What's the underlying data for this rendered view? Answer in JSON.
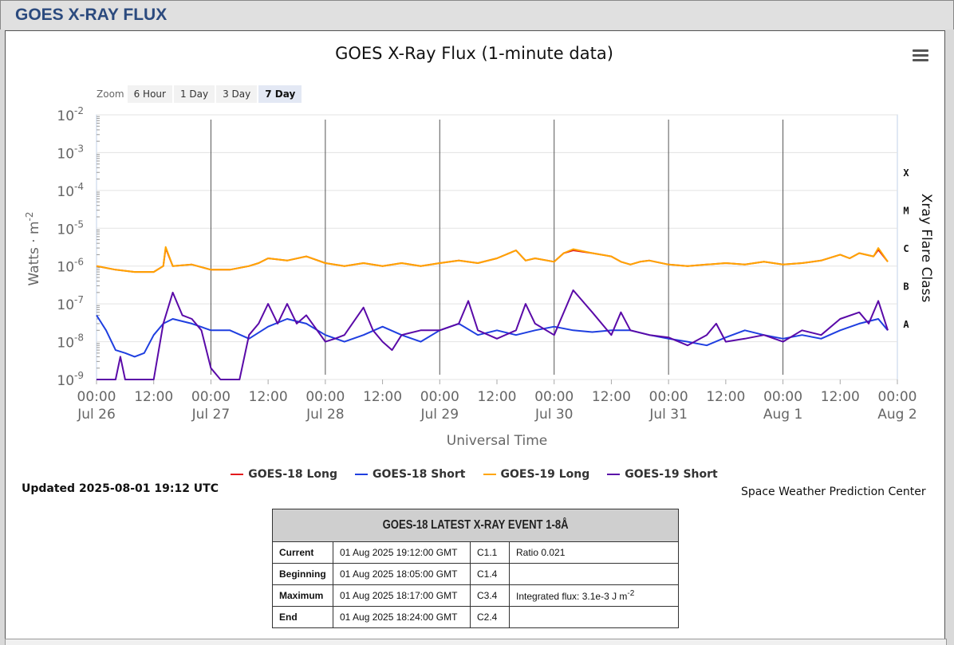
{
  "page": {
    "header": "GOES X-RAY FLUX"
  },
  "chart_meta": {
    "zoom_label": "Zoom",
    "zoom_options": [
      "6 Hour",
      "1 Day",
      "3 Day",
      "7 Day"
    ],
    "zoom_selected": "7 Day"
  },
  "colors": {
    "goes18_long": "#e31a1c",
    "goes18_short": "#1f3fe0",
    "goes19_long": "#ffa500",
    "goes19_short": "#5a0aa8",
    "header": "#2b4a7e"
  },
  "footer": {
    "updated": "Updated 2025-08-01 19:12 UTC",
    "credit": "Space Weather Prediction Center"
  },
  "event": {
    "title": "GOES-18 LATEST X-RAY EVENT 1-8Å",
    "rows": [
      {
        "label": "Current",
        "time": "01 Aug 2025 19:12:00 GMT",
        "cls": "C1.1",
        "note": "Ratio 0.021"
      },
      {
        "label": "Beginning",
        "time": "01 Aug 2025 18:05:00 GMT",
        "cls": "C1.4",
        "note": ""
      },
      {
        "label": "Maximum",
        "time": "01 Aug 2025 18:17:00 GMT",
        "cls": "C3.4",
        "note": "Integrated flux: 3.1e-3 J m",
        "note_sup": "-2"
      },
      {
        "label": "End",
        "time": "01 Aug 2025 18:24:00 GMT",
        "cls": "C2.4",
        "note": ""
      }
    ]
  },
  "chart_data": {
    "type": "line",
    "title": "GOES X-Ray Flux (1-minute data)",
    "xlabel": "Universal Time",
    "ylabel": "Watts · m",
    "ylabel_sup": "-2",
    "y2label": "Xray Flare Class",
    "y_scale": "log",
    "ylim": [
      1e-09,
      0.01
    ],
    "y_ticks": [
      {
        "base": "10",
        "exp": "-2",
        "value": 0.01
      },
      {
        "base": "10",
        "exp": "-3",
        "value": 0.001
      },
      {
        "base": "10",
        "exp": "-4",
        "value": 0.0001
      },
      {
        "base": "10",
        "exp": "-5",
        "value": 1e-05
      },
      {
        "base": "10",
        "exp": "-6",
        "value": 1e-06
      },
      {
        "base": "10",
        "exp": "-7",
        "value": 1e-07
      },
      {
        "base": "10",
        "exp": "-8",
        "value": 1e-08
      },
      {
        "base": "10",
        "exp": "-9",
        "value": 1e-09
      }
    ],
    "flare_classes": [
      {
        "label": "X",
        "value": 0.0003
      },
      {
        "label": "M",
        "value": 3e-05
      },
      {
        "label": "C",
        "value": 3e-06
      },
      {
        "label": "B",
        "value": 3e-07
      },
      {
        "label": "A",
        "value": 3e-08
      }
    ],
    "x_unit": "hours since 2025-07-26 00:00 UTC",
    "xlim": [
      0,
      168
    ],
    "x_ticks": [
      {
        "hour": 0,
        "time": "00:00",
        "date": "Jul 26"
      },
      {
        "hour": 12,
        "time": "12:00",
        "date": ""
      },
      {
        "hour": 24,
        "time": "00:00",
        "date": "Jul 27"
      },
      {
        "hour": 36,
        "time": "12:00",
        "date": ""
      },
      {
        "hour": 48,
        "time": "00:00",
        "date": "Jul 28"
      },
      {
        "hour": 60,
        "time": "12:00",
        "date": ""
      },
      {
        "hour": 72,
        "time": "00:00",
        "date": "Jul 29"
      },
      {
        "hour": 84,
        "time": "12:00",
        "date": ""
      },
      {
        "hour": 96,
        "time": "00:00",
        "date": "Jul 30"
      },
      {
        "hour": 108,
        "time": "12:00",
        "date": ""
      },
      {
        "hour": 120,
        "time": "00:00",
        "date": "Jul 31"
      },
      {
        "hour": 132,
        "time": "12:00",
        "date": ""
      },
      {
        "hour": 144,
        "time": "00:00",
        "date": "Aug 1"
      },
      {
        "hour": 156,
        "time": "12:00",
        "date": ""
      },
      {
        "hour": 168,
        "time": "00:00",
        "date": "Aug 2"
      }
    ],
    "grid": true,
    "legend_position": "bottom",
    "series": [
      {
        "name": "GOES-18 Long",
        "color": "#e31a1c",
        "x": [
          0,
          4,
          8,
          12,
          14,
          14.5,
          16,
          20,
          24,
          28,
          32,
          34,
          36,
          40,
          44,
          48,
          52,
          56,
          60,
          64,
          68,
          72,
          76,
          80,
          84,
          88,
          90,
          92,
          96,
          98,
          100,
          104,
          108,
          110,
          112,
          114,
          116,
          120,
          124,
          128,
          132,
          136,
          140,
          144,
          148,
          152,
          156,
          158,
          160,
          163,
          164,
          166
        ],
        "y": [
          1e-06,
          8e-07,
          7e-07,
          7e-07,
          1e-06,
          3e-06,
          1e-06,
          1.1e-06,
          8e-07,
          8e-07,
          1e-06,
          1.2e-06,
          1.6e-06,
          1.4e-06,
          1.8e-06,
          1.2e-06,
          1e-06,
          1.2e-06,
          1e-06,
          1.2e-06,
          1e-06,
          1.2e-06,
          1.4e-06,
          1.2e-06,
          1.6e-06,
          2.6e-06,
          1.4e-06,
          1.6e-06,
          1.3e-06,
          2.2e-06,
          2.6e-06,
          2.2e-06,
          1.8e-06,
          1.3e-06,
          1.1e-06,
          1.3e-06,
          1.4e-06,
          1.1e-06,
          1e-06,
          1.1e-06,
          1.2e-06,
          1.1e-06,
          1.3e-06,
          1.1e-06,
          1.2e-06,
          1.4e-06,
          2e-06,
          1.6e-06,
          2.2e-06,
          1.8e-06,
          2.7e-06,
          1.3e-06
        ]
      },
      {
        "name": "GOES-18 Short",
        "color": "#1f3fe0",
        "x": [
          0,
          2,
          4,
          6,
          8,
          10,
          12,
          14,
          16,
          20,
          24,
          28,
          32,
          36,
          40,
          44,
          48,
          52,
          56,
          60,
          64,
          68,
          72,
          76,
          80,
          84,
          88,
          92,
          96,
          100,
          104,
          108,
          112,
          116,
          120,
          124,
          128,
          132,
          136,
          140,
          144,
          148,
          152,
          156,
          160,
          164,
          166
        ],
        "y": [
          5e-08,
          2e-08,
          6e-09,
          5e-09,
          4e-09,
          5e-09,
          1.5e-08,
          3e-08,
          4e-08,
          3e-08,
          2e-08,
          2e-08,
          1.2e-08,
          2.5e-08,
          4e-08,
          3e-08,
          1.5e-08,
          1e-08,
          1.5e-08,
          2.5e-08,
          1.5e-08,
          1e-08,
          2e-08,
          3e-08,
          1.5e-08,
          2e-08,
          1.5e-08,
          2e-08,
          2.5e-08,
          2e-08,
          1.8e-08,
          2e-08,
          2e-08,
          1.5e-08,
          1.2e-08,
          1e-08,
          8e-09,
          1.3e-08,
          2e-08,
          1.5e-08,
          1.2e-08,
          1.5e-08,
          1.2e-08,
          2e-08,
          3e-08,
          4e-08,
          2e-08
        ]
      },
      {
        "name": "GOES-19 Long",
        "color": "#ffa500",
        "x": [
          0,
          4,
          8,
          12,
          14,
          14.5,
          16,
          20,
          24,
          28,
          32,
          34,
          36,
          40,
          44,
          48,
          52,
          56,
          60,
          64,
          68,
          72,
          76,
          80,
          84,
          88,
          90,
          92,
          96,
          98,
          100,
          104,
          108,
          110,
          112,
          114,
          116,
          120,
          124,
          128,
          132,
          136,
          140,
          144,
          148,
          152,
          156,
          158,
          160,
          163,
          164,
          166
        ],
        "y": [
          1e-06,
          8e-07,
          7e-07,
          7e-07,
          1e-06,
          3.2e-06,
          1e-06,
          1.1e-06,
          8e-07,
          8e-07,
          1e-06,
          1.2e-06,
          1.6e-06,
          1.4e-06,
          1.8e-06,
          1.2e-06,
          1e-06,
          1.2e-06,
          1e-06,
          1.2e-06,
          1e-06,
          1.2e-06,
          1.4e-06,
          1.2e-06,
          1.6e-06,
          2.6e-06,
          1.4e-06,
          1.6e-06,
          1.3e-06,
          2.2e-06,
          2.8e-06,
          2.2e-06,
          1.8e-06,
          1.3e-06,
          1.1e-06,
          1.3e-06,
          1.4e-06,
          1.1e-06,
          1e-06,
          1.1e-06,
          1.2e-06,
          1.1e-06,
          1.3e-06,
          1.1e-06,
          1.2e-06,
          1.4e-06,
          2e-06,
          1.6e-06,
          2.2e-06,
          1.8e-06,
          3e-06,
          1.3e-06
        ]
      },
      {
        "name": "GOES-19 Short",
        "color": "#5a0aa8",
        "x": [
          0,
          4,
          5,
          6,
          8,
          10,
          12,
          14,
          16,
          18,
          20,
          22,
          24,
          26,
          28,
          30,
          32,
          34,
          36,
          38,
          40,
          42,
          44,
          48,
          50,
          52,
          56,
          58,
          60,
          62,
          64,
          68,
          72,
          76,
          78,
          80,
          84,
          88,
          90,
          92,
          96,
          100,
          104,
          108,
          110,
          112,
          116,
          120,
          124,
          128,
          130,
          132,
          136,
          140,
          144,
          148,
          152,
          156,
          160,
          162,
          164,
          166
        ],
        "y": [
          1e-09,
          1e-09,
          4e-09,
          1e-09,
          1e-09,
          1e-09,
          1e-09,
          3e-08,
          2e-07,
          5e-08,
          4e-08,
          2e-08,
          2e-09,
          1e-09,
          1e-09,
          1e-09,
          1.5e-08,
          3e-08,
          1e-07,
          3e-08,
          1e-07,
          3e-08,
          5e-08,
          1e-08,
          1.2e-08,
          1.5e-08,
          8e-08,
          2e-08,
          1e-08,
          6e-09,
          1.5e-08,
          2e-08,
          2e-08,
          3e-08,
          1.2e-07,
          2e-08,
          1.2e-08,
          2e-08,
          1e-07,
          3e-08,
          1.5e-08,
          2.3e-07,
          6e-08,
          1.5e-08,
          6e-08,
          2e-08,
          1.5e-08,
          1.3e-08,
          8e-09,
          1.5e-08,
          3e-08,
          1e-08,
          1.2e-08,
          1.5e-08,
          1e-08,
          2e-08,
          1.5e-08,
          4e-08,
          6e-08,
          3e-08,
          1.2e-07,
          2e-08
        ]
      }
    ]
  }
}
